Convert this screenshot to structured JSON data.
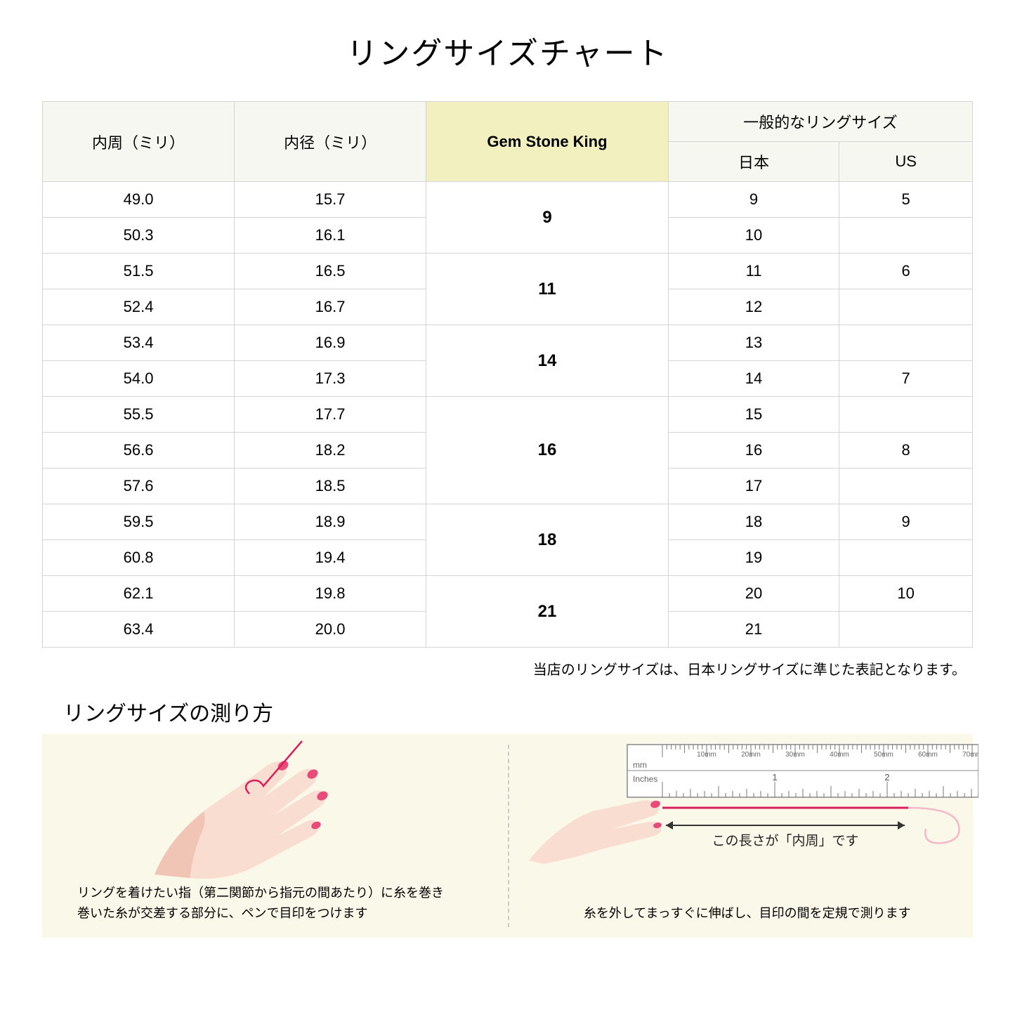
{
  "title": "リングサイズチャート",
  "headers": {
    "circumference": "内周（ミリ）",
    "diameter": "内径（ミリ）",
    "gsk": "Gem Stone King",
    "general": "一般的なリングサイズ",
    "japan": "日本",
    "us": "US"
  },
  "groups": [
    {
      "gsk": "9",
      "rows": [
        {
          "c": "49.0",
          "d": "15.7",
          "jp": "9",
          "us": "5"
        },
        {
          "c": "50.3",
          "d": "16.1",
          "jp": "10",
          "us": ""
        }
      ]
    },
    {
      "gsk": "11",
      "rows": [
        {
          "c": "51.5",
          "d": "16.5",
          "jp": "11",
          "us": "6"
        },
        {
          "c": "52.4",
          "d": "16.7",
          "jp": "12",
          "us": ""
        }
      ]
    },
    {
      "gsk": "14",
      "rows": [
        {
          "c": "53.4",
          "d": "16.9",
          "jp": "13",
          "us": ""
        },
        {
          "c": "54.0",
          "d": "17.3",
          "jp": "14",
          "us": "7"
        }
      ]
    },
    {
      "gsk": "16",
      "rows": [
        {
          "c": "55.5",
          "d": "17.7",
          "jp": "15",
          "us": ""
        },
        {
          "c": "56.6",
          "d": "18.2",
          "jp": "16",
          "us": "8"
        },
        {
          "c": "57.6",
          "d": "18.5",
          "jp": "17",
          "us": ""
        }
      ]
    },
    {
      "gsk": "18",
      "rows": [
        {
          "c": "59.5",
          "d": "18.9",
          "jp": "18",
          "us": "9"
        },
        {
          "c": "60.8",
          "d": "19.4",
          "jp": "19",
          "us": ""
        }
      ]
    },
    {
      "gsk": "21",
      "rows": [
        {
          "c": "62.1",
          "d": "19.8",
          "jp": "20",
          "us": "10"
        },
        {
          "c": "63.4",
          "d": "20.0",
          "jp": "21",
          "us": ""
        }
      ]
    }
  ],
  "note": "当店のリングサイズは、日本リングサイズに準じた表記となります。",
  "subtitle": "リングサイズの測り方",
  "instruction_left": "リングを着けたい指（第二関節から指元の間あたり）に糸を巻き\n巻いた糸が交差する部分に、ペンで目印をつけます",
  "measure_label": "この長さが「内周」です",
  "instruction_right": "糸を外してまっすぐに伸ばし、目印の間を定規で測ります",
  "ruler": {
    "mm_label": "mm",
    "inches_label": "Inches",
    "mm_ticks": [
      "10mm",
      "20mm",
      "30mm",
      "40mm",
      "50mm",
      "60mm",
      "70mm"
    ],
    "inch_ticks": [
      "1",
      "2"
    ]
  },
  "colors": {
    "header_bg": "#f7f7f2",
    "highlight_bg": "#f3f0c0",
    "border": "#d5d5d5",
    "instruction_bg": "#faf8e8",
    "skin": "#f9ddd0",
    "skin_shadow": "#f0c5b5",
    "nail": "#e84b7a",
    "thread": "#d81e5b",
    "ruler_body": "#ffffff",
    "ruler_border": "#888888"
  }
}
